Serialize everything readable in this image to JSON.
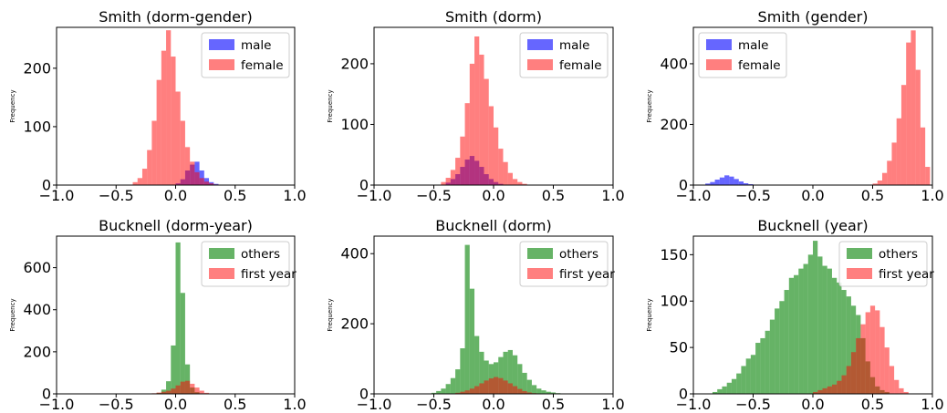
{
  "chart_data": [
    {
      "type": "histogram",
      "title": "Smith (dorm-gender)",
      "ylabel": "Frequency",
      "xlim": [
        -1.0,
        1.0
      ],
      "ylim": [
        0,
        270
      ],
      "xticks": [
        "−1.0",
        "−0.5",
        "0.0",
        "0.5",
        "1.0"
      ],
      "yticks": [
        0,
        100,
        200
      ],
      "legend": "top-right",
      "series": [
        {
          "name": "male",
          "color": "#0000ff",
          "opacity": 0.6,
          "x": [
            0.0,
            0.04,
            0.08,
            0.12,
            0.16,
            0.2,
            0.24,
            0.28,
            0.32
          ],
          "values": [
            3,
            10,
            25,
            35,
            40,
            25,
            12,
            5,
            2
          ]
        },
        {
          "name": "female",
          "color": "#ff0000",
          "opacity": 0.5,
          "x": [
            -0.36,
            -0.32,
            -0.28,
            -0.24,
            -0.2,
            -0.16,
            -0.12,
            -0.08,
            -0.04,
            0.0,
            0.04,
            0.08,
            0.12,
            0.16,
            0.2,
            0.24,
            0.28,
            0.32
          ],
          "values": [
            5,
            12,
            28,
            60,
            110,
            180,
            230,
            265,
            220,
            160,
            110,
            65,
            40,
            22,
            12,
            6,
            3,
            1
          ]
        }
      ]
    },
    {
      "type": "histogram",
      "title": "Smith (dorm)",
      "ylabel": "Frequency",
      "xlim": [
        -1.0,
        1.0
      ],
      "ylim": [
        0,
        260
      ],
      "xticks": [
        "−1.0",
        "−0.5",
        "0.0",
        "0.5",
        "1.0"
      ],
      "yticks": [
        0,
        100,
        200
      ],
      "legend": "top-right",
      "series": [
        {
          "name": "male",
          "color": "#0000ff",
          "opacity": 0.6,
          "x": [
            -0.4,
            -0.36,
            -0.32,
            -0.28,
            -0.24,
            -0.2,
            -0.16,
            -0.12,
            -0.08,
            -0.04,
            0.0,
            0.04
          ],
          "values": [
            4,
            10,
            18,
            30,
            42,
            48,
            40,
            30,
            18,
            10,
            5,
            2
          ]
        },
        {
          "name": "female",
          "color": "#ff0000",
          "opacity": 0.5,
          "x": [
            -0.44,
            -0.4,
            -0.36,
            -0.32,
            -0.28,
            -0.24,
            -0.2,
            -0.16,
            -0.12,
            -0.08,
            -0.04,
            0.0,
            0.04,
            0.08,
            0.12,
            0.16,
            0.2,
            0.24
          ],
          "values": [
            5,
            12,
            25,
            45,
            80,
            135,
            200,
            245,
            215,
            175,
            130,
            95,
            60,
            38,
            20,
            10,
            5,
            2
          ]
        }
      ]
    },
    {
      "type": "histogram",
      "title": "Smith (gender)",
      "ylabel": "Frequency",
      "xlim": [
        -1.0,
        1.0
      ],
      "ylim": [
        0,
        520
      ],
      "xticks": [
        "−1.0",
        "−0.5",
        "0.0",
        "0.5",
        "1.0"
      ],
      "yticks": [
        0,
        200,
        400
      ],
      "legend": "top-left",
      "series": [
        {
          "name": "male",
          "color": "#0000ff",
          "opacity": 0.6,
          "x": [
            -0.9,
            -0.86,
            -0.82,
            -0.78,
            -0.74,
            -0.7,
            -0.66,
            -0.62,
            -0.58,
            -0.54
          ],
          "values": [
            5,
            10,
            18,
            25,
            32,
            28,
            20,
            12,
            6,
            3
          ]
        },
        {
          "name": "female",
          "color": "#ff0000",
          "opacity": 0.5,
          "x": [
            0.5,
            0.54,
            0.58,
            0.62,
            0.66,
            0.7,
            0.74,
            0.78,
            0.82,
            0.86,
            0.9,
            0.94
          ],
          "values": [
            5,
            15,
            40,
            80,
            140,
            220,
            330,
            470,
            510,
            380,
            190,
            60
          ]
        }
      ]
    },
    {
      "type": "histogram",
      "title": "Bucknell (dorm-year)",
      "ylabel": "Frequency",
      "xlim": [
        -1.0,
        1.0
      ],
      "ylim": [
        0,
        750
      ],
      "xticks": [
        "−1.0",
        "−0.5",
        "0.0",
        "0.5",
        "1.0"
      ],
      "yticks": [
        0,
        200,
        400,
        600
      ],
      "legend": "top-right",
      "series": [
        {
          "name": "others",
          "color": "#008000",
          "opacity": 0.6,
          "x": [
            -0.16,
            -0.12,
            -0.08,
            -0.04,
            0.0,
            0.04,
            0.08,
            0.12,
            0.16
          ],
          "values": [
            5,
            20,
            60,
            230,
            720,
            480,
            140,
            30,
            8
          ]
        },
        {
          "name": "first year",
          "color": "#ff0000",
          "opacity": 0.5,
          "x": [
            -0.2,
            -0.16,
            -0.12,
            -0.08,
            -0.04,
            0.0,
            0.04,
            0.08,
            0.12,
            0.16,
            0.2,
            0.24
          ],
          "values": [
            3,
            6,
            10,
            15,
            25,
            40,
            58,
            62,
            48,
            30,
            15,
            5
          ]
        }
      ]
    },
    {
      "type": "histogram",
      "title": "Bucknell (dorm)",
      "ylabel": "Frequency",
      "xlim": [
        -1.0,
        1.0
      ],
      "ylim": [
        0,
        450
      ],
      "xticks": [
        "−1.0",
        "−0.5",
        "0.0",
        "0.5",
        "1.0"
      ],
      "yticks": [
        0,
        200,
        400
      ],
      "legend": "top-right",
      "series": [
        {
          "name": "others",
          "color": "#008000",
          "opacity": 0.6,
          "x": [
            -0.52,
            -0.48,
            -0.44,
            -0.4,
            -0.36,
            -0.32,
            -0.28,
            -0.24,
            -0.2,
            -0.16,
            -0.12,
            -0.08,
            -0.04,
            0.0,
            0.04,
            0.08,
            0.12,
            0.16,
            0.2,
            0.24,
            0.28,
            0.32,
            0.36,
            0.4,
            0.44,
            0.48,
            0.52,
            0.56
          ],
          "values": [
            3,
            8,
            15,
            28,
            45,
            70,
            130,
            425,
            300,
            165,
            120,
            95,
            85,
            90,
            105,
            120,
            125,
            110,
            85,
            60,
            40,
            25,
            15,
            10,
            6,
            4,
            2,
            1
          ]
        },
        {
          "name": "first year",
          "color": "#ff0000",
          "opacity": 0.5,
          "x": [
            -0.32,
            -0.28,
            -0.24,
            -0.2,
            -0.16,
            -0.12,
            -0.08,
            -0.04,
            0.0,
            0.04,
            0.08,
            0.12,
            0.16,
            0.2,
            0.24,
            0.28,
            0.32
          ],
          "values": [
            3,
            6,
            10,
            15,
            22,
            30,
            38,
            44,
            48,
            45,
            38,
            30,
            22,
            14,
            8,
            4,
            2
          ]
        }
      ]
    },
    {
      "type": "histogram",
      "title": "Bucknell (year)",
      "ylabel": "Frequency",
      "xlim": [
        -1.0,
        1.0
      ],
      "ylim": [
        0,
        170
      ],
      "xticks": [
        "−1.0",
        "−0.5",
        "0.0",
        "0.5",
        "1.0"
      ],
      "yticks": [
        0,
        50,
        100,
        150
      ],
      "legend": "top-right",
      "series": [
        {
          "name": "others",
          "color": "#008000",
          "opacity": 0.6,
          "x": [
            -0.84,
            -0.8,
            -0.76,
            -0.72,
            -0.68,
            -0.64,
            -0.6,
            -0.56,
            -0.52,
            -0.48,
            -0.44,
            -0.4,
            -0.36,
            -0.32,
            -0.28,
            -0.24,
            -0.2,
            -0.16,
            -0.12,
            -0.08,
            -0.04,
            0.0,
            0.04,
            0.08,
            0.12,
            0.16,
            0.2,
            0.24,
            0.28,
            0.32,
            0.36,
            0.4,
            0.44,
            0.48,
            0.52,
            0.56,
            0.6
          ],
          "values": [
            2,
            5,
            8,
            12,
            16,
            22,
            30,
            38,
            42,
            55,
            60,
            68,
            80,
            92,
            100,
            112,
            125,
            128,
            135,
            140,
            150,
            165,
            148,
            138,
            135,
            125,
            120,
            112,
            105,
            95,
            85,
            60,
            35,
            18,
            8,
            4,
            2
          ]
        },
        {
          "name": "first year",
          "color": "#ff0000",
          "opacity": 0.5,
          "x": [
            0.0,
            0.04,
            0.08,
            0.12,
            0.16,
            0.2,
            0.24,
            0.28,
            0.32,
            0.36,
            0.4,
            0.44,
            0.48,
            0.52,
            0.56,
            0.6,
            0.64,
            0.68,
            0.72,
            0.76
          ],
          "values": [
            2,
            4,
            6,
            8,
            10,
            14,
            20,
            30,
            45,
            60,
            75,
            88,
            95,
            90,
            72,
            50,
            30,
            15,
            6,
            2
          ]
        }
      ]
    }
  ]
}
